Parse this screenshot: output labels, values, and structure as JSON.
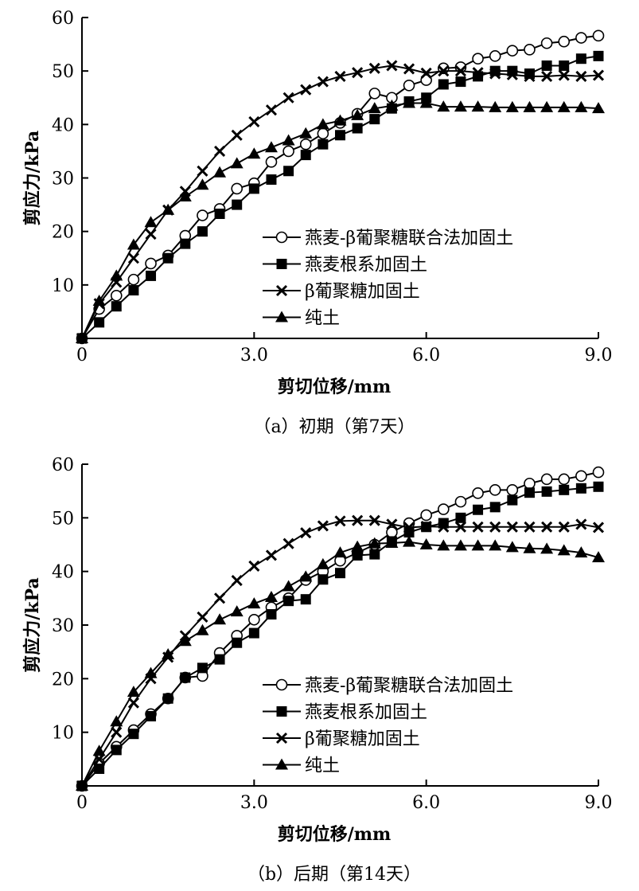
{
  "chart_data": [
    {
      "type": "line",
      "caption": "（a）初期（第7天）",
      "xlabel": "剪切位移/mm",
      "ylabel": "剪应力/kPa",
      "xlim": [
        0,
        9.0
      ],
      "ylim": [
        0,
        60
      ],
      "xticks": [
        "0",
        "3.0",
        "6.0",
        "9.0"
      ],
      "yticks": [
        "10",
        "20",
        "30",
        "40",
        "50",
        "60"
      ],
      "legend_position": "center-right",
      "x": [
        0,
        0.3,
        0.6,
        0.9,
        1.2,
        1.5,
        1.8,
        2.1,
        2.4,
        2.7,
        3.0,
        3.3,
        3.6,
        3.9,
        4.2,
        4.5,
        4.8,
        5.1,
        5.4,
        5.7,
        6.0,
        6.3,
        6.6,
        6.9,
        7.2,
        7.5,
        7.8,
        8.1,
        8.4,
        8.7,
        9.0
      ],
      "series": [
        {
          "name": "燕麦-β葡聚糖联合法加固土",
          "marker": "open-circle",
          "values": [
            0,
            5.5,
            8,
            11,
            14,
            15.5,
            19.2,
            23,
            24.2,
            28,
            29,
            33,
            35,
            36.3,
            38.3,
            40.3,
            42,
            45.8,
            45,
            47.3,
            48.3,
            50.5,
            50.7,
            52.3,
            52.8,
            53.8,
            54,
            55.2,
            55.5,
            56.2,
            56.6
          ]
        },
        {
          "name": "燕麦根系加固土",
          "marker": "filled-square",
          "values": [
            0,
            3,
            6,
            9,
            11.7,
            15,
            17.7,
            20,
            23.3,
            25,
            28,
            29.7,
            31.3,
            34.3,
            36.3,
            38,
            39.3,
            41,
            43,
            44.3,
            45,
            47.5,
            48,
            49,
            50,
            50,
            49.5,
            51,
            51,
            52.3,
            52.8
          ]
        },
        {
          "name": "β葡聚糖加固土",
          "marker": "cross",
          "values": [
            0,
            6.5,
            10.5,
            15,
            19.5,
            24,
            27.5,
            31.3,
            35,
            38,
            40.5,
            42.7,
            45,
            46.5,
            48,
            49,
            49.7,
            50.5,
            51,
            50.4,
            49.6,
            50,
            50,
            49.7,
            49.5,
            49.3,
            49,
            49,
            49.2,
            49,
            49.2
          ]
        },
        {
          "name": "纯土",
          "marker": "filled-triangle",
          "values": [
            0,
            7,
            11.7,
            17.5,
            21.7,
            24,
            26.5,
            28.7,
            31,
            32.7,
            34.5,
            35.7,
            37,
            38.3,
            40,
            40.7,
            41.7,
            43,
            43.5,
            44,
            44,
            43.3,
            43.3,
            43.3,
            43.2,
            43.2,
            43.2,
            43.2,
            43.2,
            43.2,
            43
          ]
        }
      ]
    },
    {
      "type": "line",
      "caption": "（b）后期（第14天）",
      "xlabel": "剪切位移/mm",
      "ylabel": "剪应力/kPa",
      "xlim": [
        0,
        9.0
      ],
      "ylim": [
        0,
        60
      ],
      "xticks": [
        "0",
        "3.0",
        "6.0",
        "9.0"
      ],
      "yticks": [
        "10",
        "20",
        "30",
        "40",
        "50",
        "60"
      ],
      "legend_position": "center-right",
      "x": [
        0,
        0.3,
        0.6,
        0.9,
        1.2,
        1.5,
        1.8,
        2.1,
        2.4,
        2.7,
        3.0,
        3.3,
        3.6,
        3.9,
        4.2,
        4.5,
        4.8,
        5.1,
        5.4,
        5.7,
        6.0,
        6.3,
        6.6,
        6.9,
        7.2,
        7.5,
        7.8,
        8.1,
        8.4,
        8.7,
        9.0
      ],
      "series": [
        {
          "name": "燕麦-β葡聚糖联合法加固土",
          "marker": "open-circle",
          "values": [
            0,
            4.2,
            7.3,
            10.4,
            13.4,
            16.3,
            20.2,
            20.5,
            24.8,
            28,
            31,
            33.3,
            35,
            38.4,
            40,
            42,
            43.5,
            45,
            47.3,
            49,
            50.5,
            51.6,
            53,
            54.6,
            55.2,
            55.2,
            56.4,
            57.2,
            57.2,
            57.8,
            58.5
          ]
        },
        {
          "name": "燕麦根系加固土",
          "marker": "filled-square",
          "values": [
            0,
            3.2,
            6.7,
            9.7,
            13,
            16.3,
            20.2,
            22,
            23.6,
            26.7,
            28.5,
            32,
            34.5,
            34.8,
            38.5,
            39.7,
            43,
            43.2,
            45.6,
            47.3,
            48.3,
            49,
            50,
            51.5,
            52,
            53.3,
            54.7,
            54.9,
            55.2,
            55.5,
            55.8
          ]
        },
        {
          "name": "β葡聚糖加固土",
          "marker": "cross",
          "values": [
            0,
            5,
            10,
            15.5,
            20,
            24,
            28,
            31.5,
            35,
            38.3,
            41,
            43,
            45.2,
            47.2,
            48.5,
            49.4,
            49.5,
            49.5,
            48.8,
            48.2,
            48.4,
            48.3,
            48.3,
            48.3,
            48.3,
            48.3,
            48.3,
            48.3,
            48.3,
            48.8,
            48.2
          ]
        },
        {
          "name": "纯土",
          "marker": "filled-triangle",
          "values": [
            0,
            6.5,
            12,
            17.5,
            21,
            24.5,
            27,
            29,
            31,
            32.5,
            34,
            35.2,
            37.2,
            39,
            41.3,
            43.5,
            44.6,
            45.2,
            45.3,
            45.5,
            45,
            44.8,
            44.8,
            44.8,
            44.8,
            44.5,
            44.3,
            44.2,
            43.9,
            43.5,
            42.6
          ]
        }
      ]
    }
  ]
}
